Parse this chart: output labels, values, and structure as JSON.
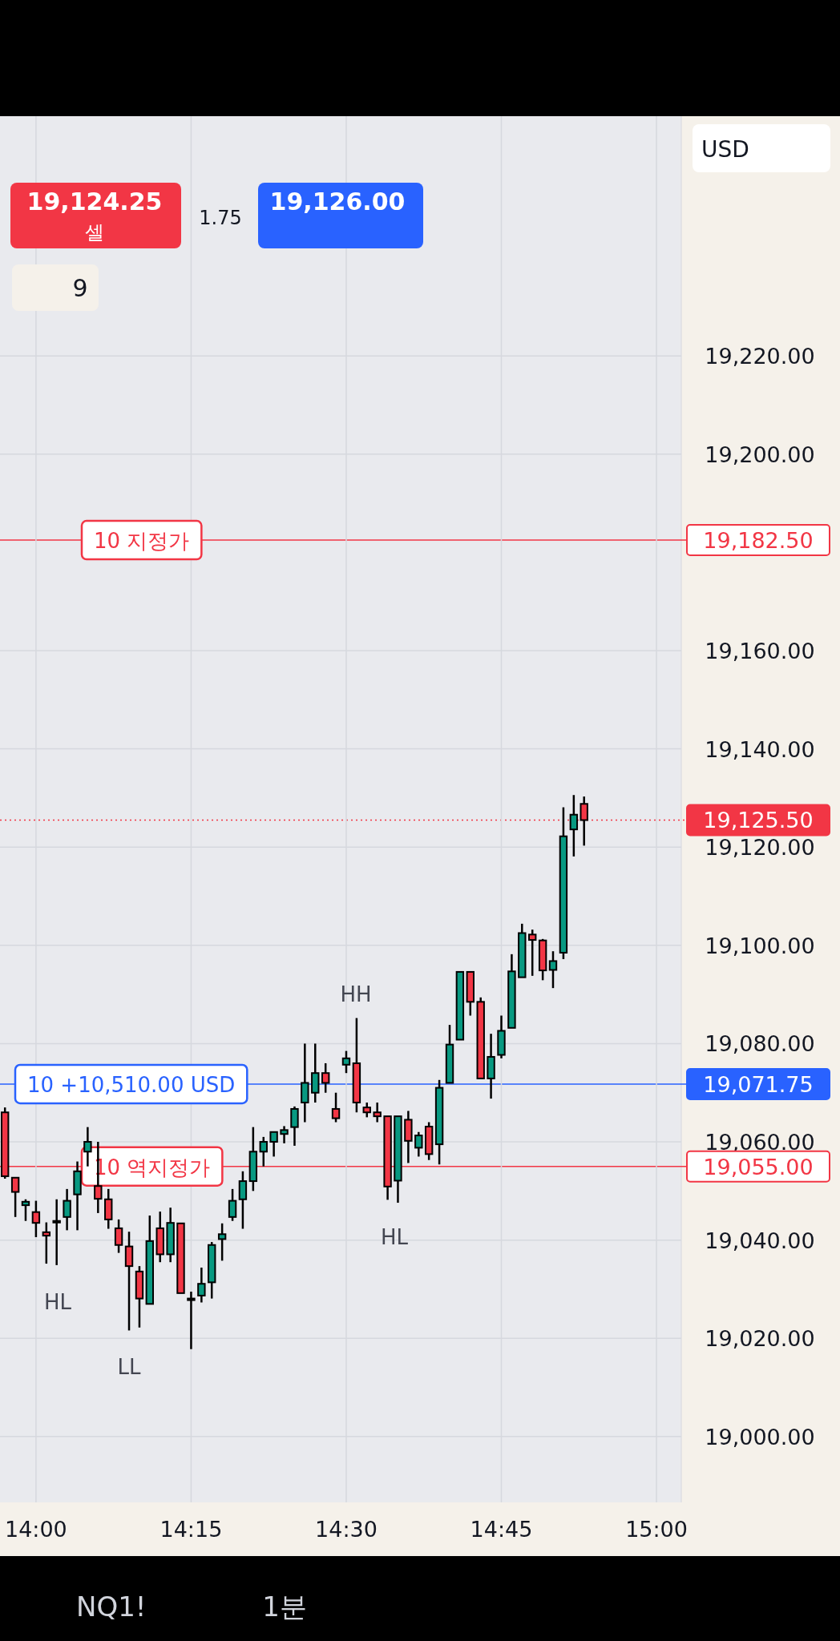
{
  "chart_data": {
    "type": "candlestick",
    "x": [
      13.95,
      13.9667,
      13.9833,
      14,
      14.0167,
      14.0333,
      14.05,
      14.0667,
      14.0833,
      14.1,
      14.1167,
      14.1333,
      14.15,
      14.1667,
      14.1833,
      14.2,
      14.2167,
      14.2333,
      14.25,
      14.2667,
      14.2833,
      14.3,
      14.3167,
      14.3333,
      14.35,
      14.3667,
      14.3833,
      14.4,
      14.4167,
      14.4333,
      14.45,
      14.4667,
      14.4833,
      14.5,
      14.5167,
      14.5333,
      14.55,
      14.5667,
      14.5833,
      14.6,
      14.6167,
      14.6333,
      14.65,
      14.6667,
      14.6833,
      14.7,
      14.7167,
      14.7333,
      14.75,
      14.7667,
      14.7833,
      14.8,
      14.8167,
      14.8333,
      14.85,
      14.8667,
      14.8833
    ],
    "ohlc": [
      [
        19066,
        19067,
        19052.5,
        19053
      ],
      [
        19052.7,
        19052.7,
        19044.7,
        19049.8
      ],
      [
        19047.1,
        19048.3,
        19043.9,
        19047.8
      ],
      [
        19045.7,
        19048,
        19040.6,
        19043.5
      ],
      [
        19041.6,
        19043.6,
        19035.2,
        19040.9
      ],
      [
        19043.9,
        19048.3,
        19034.9,
        19043.9
      ],
      [
        19044.7,
        19050.4,
        19042,
        19048
      ],
      [
        19049.3,
        19056,
        19042,
        19054
      ],
      [
        19058,
        19063,
        19055,
        19060
      ],
      [
        19051,
        19060,
        19045.5,
        19048.4
      ],
      [
        19048.3,
        19050.4,
        19042.3,
        19044.2
      ],
      [
        19042.4,
        19044.2,
        19037.4,
        19039
      ],
      [
        19038.7,
        19041.7,
        19021.6,
        19034.7
      ],
      [
        19033.6,
        19034.7,
        19022.2,
        19028.1
      ],
      [
        19027,
        19045,
        19027,
        19039.8
      ],
      [
        19042.4,
        19045.8,
        19035.5,
        19037.1
      ],
      [
        19037.1,
        19046.6,
        19035.5,
        19043.5
      ],
      [
        19043.4,
        19043.4,
        19029.2,
        19029.2
      ],
      [
        19028.1,
        19029.5,
        19017.8,
        19028.1
      ],
      [
        19028.7,
        19034.4,
        19027.3,
        19031.1
      ],
      [
        19031.4,
        19039.6,
        19028.1,
        19039
      ],
      [
        19040.2,
        19043.4,
        19035.8,
        19041.2
      ],
      [
        19044.7,
        19050.4,
        19043.9,
        19048
      ],
      [
        19048.3,
        19054,
        19042.3,
        19052
      ],
      [
        19052,
        19063,
        19050,
        19058
      ],
      [
        19058,
        19061,
        19055,
        19060
      ],
      [
        19060,
        19062,
        19057,
        19062
      ],
      [
        19061.6,
        19063.2,
        19059.7,
        19062.4
      ],
      [
        19063,
        19067.2,
        19059.2,
        19066.7
      ],
      [
        19068,
        19080,
        19064,
        19072
      ],
      [
        19070,
        19080,
        19068,
        19074
      ],
      [
        19074,
        19076,
        19070,
        19072
      ],
      [
        19066.7,
        19070,
        19064,
        19064.8
      ],
      [
        19075.7,
        19078.5,
        19074,
        19077
      ],
      [
        19076,
        19085.2,
        19066,
        19068
      ],
      [
        19067,
        19068,
        19065,
        19066
      ],
      [
        19066,
        19068,
        19064,
        19065.2
      ],
      [
        19065.2,
        19065.2,
        19048.2,
        19050.9
      ],
      [
        19052.1,
        19065.2,
        19047.6,
        19065.2
      ],
      [
        19064.5,
        19066.3,
        19055.7,
        19060.2
      ],
      [
        19058.8,
        19062,
        19057,
        19061.3
      ],
      [
        19063.1,
        19064,
        19056.3,
        19057.5
      ],
      [
        19059.5,
        19072.6,
        19055.4,
        19071
      ],
      [
        19072,
        19083.8,
        19072,
        19079.8
      ],
      [
        19080.8,
        19094.6,
        19080.8,
        19094.6
      ],
      [
        19094.6,
        19094.6,
        19085.7,
        19088.5
      ],
      [
        19088.5,
        19089.4,
        19072.9,
        19072.9
      ],
      [
        19072.9,
        19082,
        19068.8,
        19077.3
      ],
      [
        19077.7,
        19085.7,
        19077,
        19082.6
      ],
      [
        19083.2,
        19098.2,
        19083.2,
        19094.7
      ],
      [
        19093.5,
        19104.4,
        19093.5,
        19102.5
      ],
      [
        19102.2,
        19103.2,
        19093.8,
        19101.1
      ],
      [
        19101,
        19101.3,
        19092.9,
        19094.9
      ],
      [
        19095,
        19098.8,
        19091.3,
        19096.8
      ],
      [
        19098.5,
        19128.1,
        19097.2,
        19122.2
      ],
      [
        19123.6,
        19130.6,
        19118.1,
        19126.6
      ],
      [
        19128.8,
        19130.3,
        19120.3,
        19125.5
      ]
    ],
    "xlim": [
      13.942,
      15.04
    ],
    "ylim": [
      18986.6,
      19268.8
    ],
    "xticks": [
      {
        "value": 14,
        "label": "14:00"
      },
      {
        "value": 14.25,
        "label": "14:15"
      },
      {
        "value": 14.5,
        "label": "14:30"
      },
      {
        "value": 14.75,
        "label": "14:45"
      },
      {
        "value": 15,
        "label": "15:00"
      }
    ],
    "yticks": [
      {
        "value": 19000,
        "label": "19,000.00"
      },
      {
        "value": 19020,
        "label": "19,020.00"
      },
      {
        "value": 19040,
        "label": "19,040.00"
      },
      {
        "value": 19060,
        "label": "19,060.00"
      },
      {
        "value": 19080,
        "label": "19,080.00"
      },
      {
        "value": 19100,
        "label": "19,100.00"
      },
      {
        "value": 19120,
        "label": "19,120.00"
      },
      {
        "value": 19140,
        "label": "19,140.00"
      },
      {
        "value": 19160,
        "label": "19,160.00"
      },
      {
        "value": 19200,
        "label": "19,200.00"
      },
      {
        "value": 19220,
        "label": "19,220.00"
      }
    ],
    "grid": true,
    "ref_lines": [
      {
        "axis": "y",
        "value": 19182.5,
        "label": "19,182.50",
        "color": "#f23645",
        "line_style": "solid"
      },
      {
        "axis": "y",
        "value": 19125.5,
        "label": "19,125.50",
        "color": "#f23645",
        "line_style": "dotted"
      },
      {
        "axis": "y",
        "value": 19071.75,
        "label": "19,071.75",
        "color": "#2962ff",
        "line_style": "solid"
      },
      {
        "axis": "y",
        "value": 19055,
        "label": "19,055.00",
        "color": "#f23645",
        "line_style": "solid"
      }
    ],
    "annotations": [
      "19,124.25",
      "셀",
      "1.75",
      "19,126.00",
      "9",
      "USD",
      "NQ1!",
      "1분",
      {
        "text": "10 지정가",
        "y": 19182.5
      },
      {
        "text": "10 +10,510.00 USD",
        "y": 19071.75
      },
      {
        "text": "10 역지정가",
        "y": 19055
      },
      "HH",
      "HL",
      "LL",
      "HL"
    ]
  }
}
